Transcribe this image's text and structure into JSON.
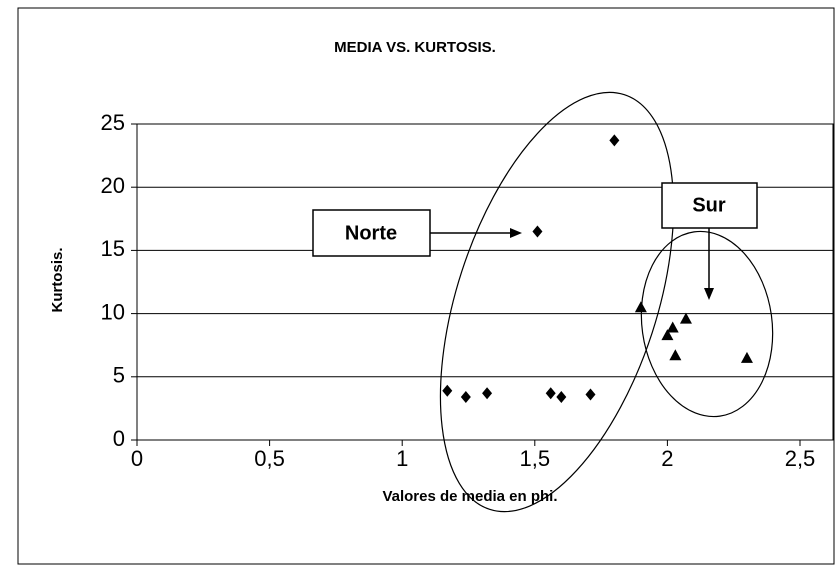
{
  "chart_data": {
    "type": "scatter",
    "title": "MEDIA VS. KURTOSIS.",
    "x_label": "Valores de media en phi.",
    "y_label": "Kurtosis.",
    "xlim": [
      0,
      2.5
    ],
    "ylim": [
      0,
      25
    ],
    "xticks": [
      0,
      {
        "value": 0.5,
        "label": "0,5"
      },
      1,
      {
        "value": 1.5,
        "label": "1,5"
      },
      2,
      {
        "value": 2.5,
        "label": "2,5"
      }
    ],
    "yticks": [
      0,
      5,
      10,
      15,
      20,
      25
    ],
    "grid": true,
    "series": [
      {
        "name": "Norte",
        "color": "#000000",
        "marker": "diamond",
        "x": [
          1.17,
          1.24,
          1.32,
          1.51,
          1.56,
          1.6,
          1.71,
          1.8
        ],
        "values": [
          3.9,
          3.4,
          3.7,
          16.5,
          3.7,
          3.4,
          3.6,
          23.7
        ]
      },
      {
        "name": "Sur",
        "color": "#000000",
        "marker": "triangle",
        "x": [
          1.9,
          2.0,
          2.02,
          2.03,
          2.07,
          2.3
        ],
        "values": [
          10.5,
          8.3,
          8.9,
          6.7,
          9.6,
          6.5
        ]
      }
    ]
  }
}
